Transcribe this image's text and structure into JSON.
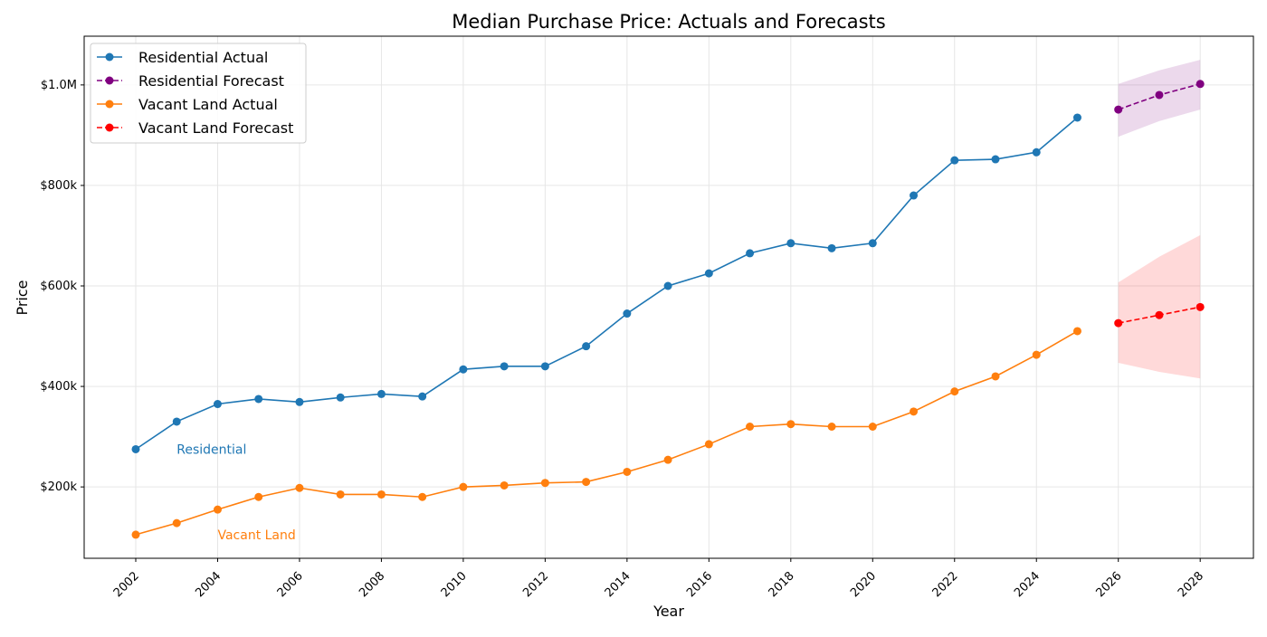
{
  "chart_data": {
    "type": "line",
    "title": "Median Purchase Price: Actuals and Forecasts",
    "xlabel": "Year",
    "ylabel": "Price",
    "xlim": [
      2000.74,
      2029.3
    ],
    "ylim": [
      58000,
      1097000
    ],
    "grid": true,
    "legend_position": "top-left",
    "x_ticks": [
      2002,
      2004,
      2006,
      2008,
      2010,
      2012,
      2014,
      2016,
      2018,
      2020,
      2022,
      2024,
      2026,
      2028
    ],
    "y_ticks": [
      {
        "value": 200000,
        "label": "$200k"
      },
      {
        "value": 400000,
        "label": "$400k"
      },
      {
        "value": 600000,
        "label": "$600k"
      },
      {
        "value": 800000,
        "label": "$800k"
      },
      {
        "value": 1000000,
        "label": "$1.0M"
      }
    ],
    "series": [
      {
        "name": "Residential Actual",
        "color": "#1f77b4",
        "style": "solid",
        "x": [
          2002,
          2003,
          2004,
          2005,
          2006,
          2007,
          2008,
          2009,
          2010,
          2011,
          2012,
          2013,
          2014,
          2015,
          2016,
          2017,
          2018,
          2019,
          2020,
          2021,
          2022,
          2023,
          2024,
          2025
        ],
        "values": [
          275000,
          330000,
          365000,
          375000,
          369000,
          378000,
          385000,
          380000,
          434000,
          440000,
          440000,
          480000,
          545000,
          600000,
          625000,
          665000,
          685000,
          675000,
          685000,
          780000,
          850000,
          852000,
          866000,
          935000
        ]
      },
      {
        "name": "Residential Forecast",
        "color": "#800080",
        "style": "dashed",
        "x": [
          2026,
          2027,
          2028
        ],
        "values": [
          951000,
          980000,
          1002000
        ],
        "band_lower": [
          897000,
          928000,
          951000
        ],
        "band_upper": [
          1002000,
          1029000,
          1050000
        ]
      },
      {
        "name": "Vacant Land Actual",
        "color": "#ff7f0e",
        "style": "solid",
        "x": [
          2002,
          2003,
          2004,
          2005,
          2006,
          2007,
          2008,
          2009,
          2010,
          2011,
          2012,
          2013,
          2014,
          2015,
          2016,
          2017,
          2018,
          2019,
          2020,
          2021,
          2022,
          2023,
          2024,
          2025
        ],
        "values": [
          105000,
          128000,
          155000,
          180000,
          198000,
          185000,
          185000,
          180000,
          200000,
          203000,
          208000,
          210000,
          230000,
          254000,
          285000,
          320000,
          325000,
          320000,
          320000,
          350000,
          390000,
          420000,
          463000,
          510000
        ]
      },
      {
        "name": "Vacant Land Forecast",
        "color": "#ff0000",
        "style": "dashed",
        "x": [
          2026,
          2027,
          2028
        ],
        "values": [
          526000,
          542000,
          558000
        ],
        "band_lower": [
          447000,
          429000,
          416000
        ],
        "band_upper": [
          607000,
          658000,
          701000
        ]
      }
    ],
    "annotations": [
      {
        "text": "Residential",
        "x": 2003,
        "y": 275000,
        "color": "#1f77b4"
      },
      {
        "text": "Vacant Land",
        "x": 2004,
        "y": 105000,
        "color": "#ff7f0e"
      }
    ]
  }
}
